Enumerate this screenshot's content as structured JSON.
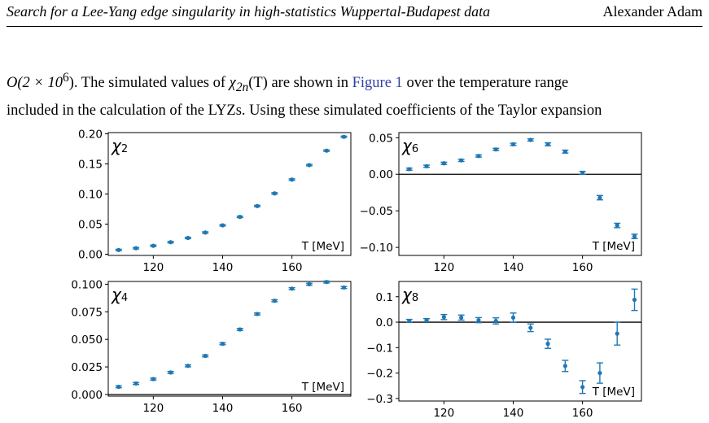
{
  "header": {
    "title": "Search for a Lee-Yang edge singularity in high-statistics Wuppertal-Budapest data",
    "author": "Alexander Adam"
  },
  "paragraph": {
    "line1_a": "O(2 × 10",
    "line1_sup": "6",
    "line1_b": "). The simulated values of ",
    "line1_chi": "χ",
    "line1_chi_sub": "2n",
    "line1_c": "(T) are shown in ",
    "line1_link": "Figure 1",
    "line1_d": " over the temperature range",
    "line2": "included in the calculation of the LYZs. Using these simulated coefficients of the Taylor expansion"
  },
  "chart_data": [
    {
      "type": "scatter",
      "panel_label": "χ",
      "panel_sub": "2",
      "xlabel": "T [MeV]",
      "xlim": [
        107,
        177
      ],
      "ylim": [
        -0.002,
        0.202
      ],
      "xticks": [
        120,
        140,
        160
      ],
      "yticks": [
        0.0,
        0.05,
        0.1,
        0.15,
        0.2
      ],
      "ytick_labels": [
        "0.00",
        "0.05",
        "0.10",
        "0.15",
        "0.20"
      ],
      "show_xtick_labels": true,
      "zero_line": false,
      "color": "#1f77b4",
      "x": [
        110,
        115,
        120,
        125,
        130,
        135,
        140,
        145,
        150,
        155,
        160,
        165,
        170,
        175
      ],
      "y": [
        0.007,
        0.01,
        0.014,
        0.02,
        0.027,
        0.036,
        0.048,
        0.062,
        0.08,
        0.101,
        0.124,
        0.148,
        0.172,
        0.195
      ],
      "err": [
        0.0012,
        0.0012,
        0.0012,
        0.0012,
        0.0012,
        0.0012,
        0.0012,
        0.0012,
        0.0012,
        0.0012,
        0.0012,
        0.0012,
        0.0012,
        0.0012
      ]
    },
    {
      "type": "scatter",
      "panel_label": "χ",
      "panel_sub": "6",
      "xlabel": "T [MeV]",
      "xlim": [
        107,
        177
      ],
      "ylim": [
        -0.111,
        0.057
      ],
      "xticks": [
        120,
        140,
        160
      ],
      "yticks": [
        0.05,
        0.0,
        -0.05,
        -0.1
      ],
      "ytick_labels": [
        "0.05",
        "0.00",
        "−0.05",
        "−0.10"
      ],
      "show_xtick_labels": true,
      "zero_line": true,
      "color": "#1f77b4",
      "x": [
        110,
        115,
        120,
        125,
        130,
        135,
        140,
        145,
        150,
        155,
        160,
        165,
        170,
        175
      ],
      "y": [
        0.007,
        0.011,
        0.015,
        0.019,
        0.025,
        0.034,
        0.041,
        0.047,
        0.041,
        0.031,
        0.002,
        -0.032,
        -0.07,
        -0.085
      ],
      "err": [
        0.0015,
        0.0015,
        0.0015,
        0.0015,
        0.0015,
        0.0015,
        0.0015,
        0.0015,
        0.002,
        0.002,
        0.002,
        0.003,
        0.003,
        0.003
      ]
    },
    {
      "type": "scatter",
      "panel_label": "χ",
      "panel_sub": "4",
      "xlabel": "T [MeV]",
      "xlim": [
        107,
        177
      ],
      "ylim": [
        -0.0015,
        0.1025
      ],
      "xticks": [
        120,
        140,
        160
      ],
      "yticks": [
        0.0,
        0.025,
        0.05,
        0.075,
        0.1
      ],
      "ytick_labels": [
        "0.000",
        "0.025",
        "0.050",
        "0.075",
        "0.100"
      ],
      "show_xtick_labels": true,
      "zero_line": true,
      "color": "#1f77b4",
      "x": [
        110,
        115,
        120,
        125,
        130,
        135,
        140,
        145,
        150,
        155,
        160,
        165,
        170,
        175
      ],
      "y": [
        0.007,
        0.01,
        0.014,
        0.02,
        0.026,
        0.035,
        0.046,
        0.059,
        0.073,
        0.085,
        0.096,
        0.1,
        0.102,
        0.097
      ],
      "err": [
        0.0009,
        0.0009,
        0.0009,
        0.0009,
        0.0009,
        0.0009,
        0.0009,
        0.0009,
        0.0009,
        0.0009,
        0.0009,
        0.0009,
        0.0009,
        0.0009
      ]
    },
    {
      "type": "scatter",
      "panel_label": "χ",
      "panel_sub": "8",
      "xlabel": "T [MeV]",
      "xlim": [
        107,
        177
      ],
      "ylim": [
        -0.31,
        0.16
      ],
      "xticks": [
        120,
        140,
        160
      ],
      "yticks": [
        0.1,
        0.0,
        -0.1,
        -0.2,
        -0.3
      ],
      "ytick_labels": [
        "0.1",
        "0.0",
        "−0.1",
        "−0.2",
        "−0.3"
      ],
      "show_xtick_labels": true,
      "zero_line": true,
      "color": "#1f77b4",
      "x": [
        110,
        115,
        120,
        125,
        130,
        135,
        140,
        145,
        150,
        155,
        160,
        165,
        170,
        175
      ],
      "y": [
        0.005,
        0.008,
        0.02,
        0.018,
        0.008,
        0.005,
        0.018,
        -0.022,
        -0.085,
        -0.172,
        -0.255,
        -0.2,
        -0.045,
        0.088
      ],
      "err": [
        0.006,
        0.006,
        0.01,
        0.01,
        0.01,
        0.012,
        0.018,
        0.015,
        0.018,
        0.022,
        0.025,
        0.04,
        0.045,
        0.042
      ]
    }
  ]
}
